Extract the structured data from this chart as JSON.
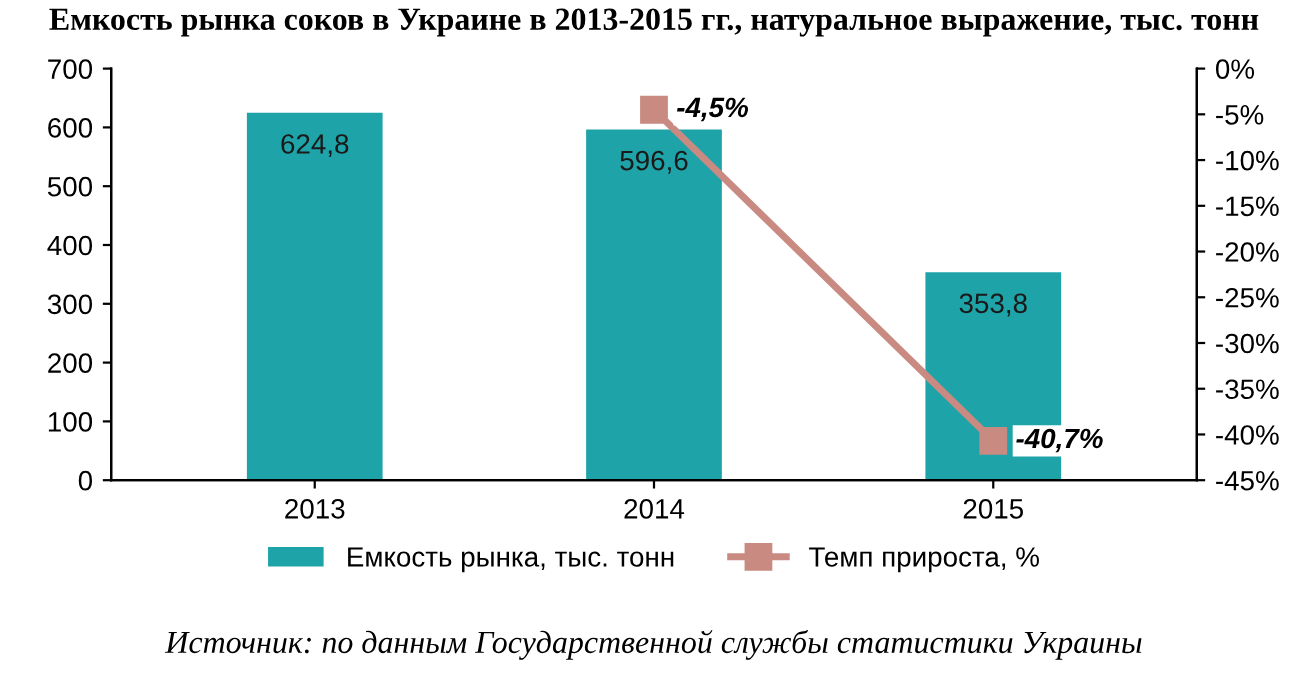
{
  "chart_data": {
    "type": "bar",
    "title": "Емкость рынка соков в Украине в 2013-2015 гг., натуральное выражение, тыс. тонн",
    "categories": [
      "2013",
      "2014",
      "2015"
    ],
    "series": [
      {
        "name": "Емкость рынка, тыс. тонн",
        "color": "#1ea3a8",
        "values": [
          624.8,
          596.6,
          353.8
        ],
        "value_labels": [
          "624,8",
          "596,6",
          "353,8"
        ]
      },
      {
        "name": "Темп прироста, %",
        "type": "line",
        "axis": "y2",
        "color": "#c98a82",
        "marker": "square",
        "values": [
          null,
          -4.5,
          -40.7
        ],
        "value_labels": [
          null,
          "-4,5%",
          "-40,7%"
        ]
      }
    ],
    "ylim": [
      0,
      700
    ],
    "yticks": [
      0,
      100,
      200,
      300,
      400,
      500,
      600,
      700
    ],
    "y2lim": [
      -45,
      0
    ],
    "y2ticks": [
      {
        "value": 0,
        "label": "0%"
      },
      {
        "value": -5,
        "label": "-5%"
      },
      {
        "value": -10,
        "label": "-10%"
      },
      {
        "value": -15,
        "label": "-15%"
      },
      {
        "value": -20,
        "label": "-20%"
      },
      {
        "value": -25,
        "label": "-25%"
      },
      {
        "value": -30,
        "label": "-30%"
      },
      {
        "value": -35,
        "label": "-35%"
      },
      {
        "value": -40,
        "label": "-40%"
      },
      {
        "value": -45,
        "label": "-45%"
      }
    ],
    "legend": "bottom",
    "grid": false,
    "annotations": [
      "Источник: по данным Государственной службы статистики Украины"
    ]
  }
}
